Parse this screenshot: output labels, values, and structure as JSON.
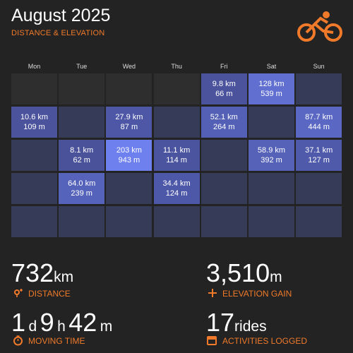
{
  "header": {
    "title": "August 2025",
    "subtitle": "DISTANCE & ELEVATION"
  },
  "calendar": {
    "weekdays": [
      "Mon",
      "Tue",
      "Wed",
      "Thu",
      "Fri",
      "Sat",
      "Sun"
    ],
    "weeks": [
      [
        null,
        null,
        null,
        null,
        {
          "distance": "9.8 km",
          "elevation": "66 m",
          "color": "#4a539c"
        },
        {
          "distance": "128 km",
          "elevation": "539 m",
          "color": "#6170d0"
        },
        {
          "color": "#363b58"
        }
      ],
      [
        {
          "distance": "10.6 km",
          "elevation": "109 m",
          "color": "#4a539c"
        },
        {
          "color": "#363b58"
        },
        {
          "distance": "27.9 km",
          "elevation": "87 m",
          "color": "#4d57a6"
        },
        {
          "color": "#363b58"
        },
        {
          "distance": "52.1 km",
          "elevation": "264 m",
          "color": "#5360b5"
        },
        {
          "color": "#363b58"
        },
        {
          "distance": "87.7 km",
          "elevation": "444 m",
          "color": "#5a68c4"
        }
      ],
      [
        {
          "color": "#363b58"
        },
        {
          "distance": "8.1 km",
          "elevation": "62 m",
          "color": "#4a529a"
        },
        {
          "distance": "203 km",
          "elevation": "943 m",
          "color": "#6e80ee"
        },
        {
          "distance": "11.1 km",
          "elevation": "114 m",
          "color": "#4b549e"
        },
        {
          "color": "#363b58"
        },
        {
          "distance": "58.9 km",
          "elevation": "392 m",
          "color": "#5562b8"
        },
        {
          "distance": "37.1 km",
          "elevation": "127 m",
          "color": "#4f5aab"
        }
      ],
      [
        {
          "color": "#363b58"
        },
        {
          "distance": "64.0 km",
          "elevation": "239 m",
          "color": "#5663ba"
        },
        {
          "color": "#363b58"
        },
        {
          "distance": "34.4 km",
          "elevation": "124 m",
          "color": "#4e58a8"
        },
        {
          "color": "#363b58"
        },
        {
          "color": "#363b58"
        },
        {
          "color": "#363b58"
        }
      ],
      [
        {
          "color": "#363b58"
        },
        {
          "color": "#363b58"
        },
        {
          "color": "#363b58"
        },
        {
          "color": "#363b58"
        },
        {
          "color": "#363b58"
        },
        {
          "color": "#363b58"
        },
        {
          "color": "#363b58"
        }
      ]
    ]
  },
  "stats": {
    "distance": {
      "value": "732",
      "unit": "km",
      "label": "DISTANCE"
    },
    "elevation": {
      "value": "3,510",
      "unit": "m",
      "label": "ELEVATION GAIN"
    },
    "moving_time": {
      "parts": [
        {
          "value": "1",
          "unit": "d"
        },
        {
          "value": "9",
          "unit": "h"
        },
        {
          "value": "42",
          "unit": "m"
        }
      ],
      "label": "MOVING TIME"
    },
    "activities": {
      "value": "17",
      "unit": "rides",
      "label": "ACTIVITIES LOGGED"
    }
  }
}
